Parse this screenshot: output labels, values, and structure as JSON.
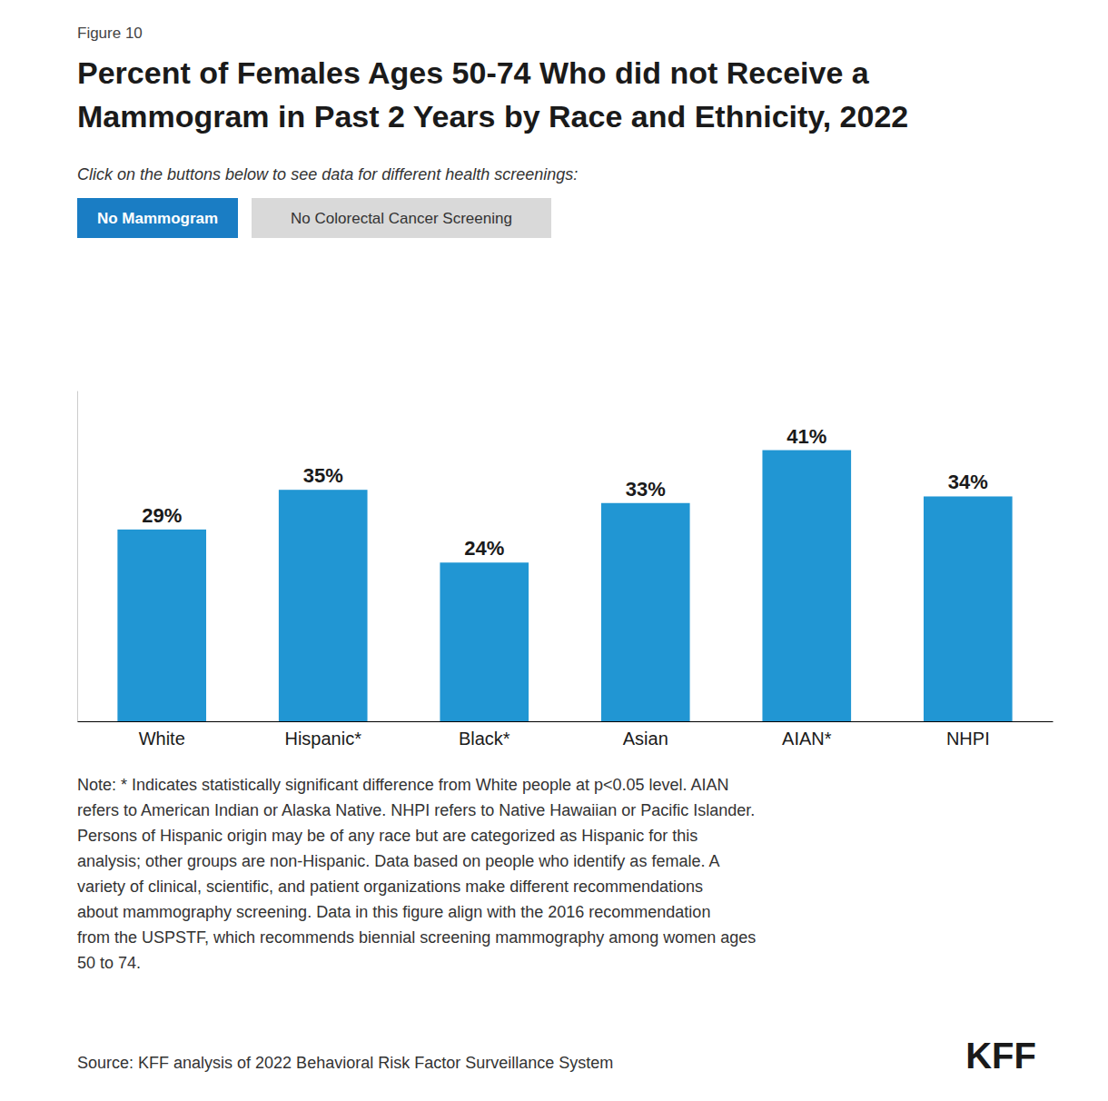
{
  "chart_data": {
    "type": "bar",
    "title": [
      "Percent of Females Ages 50-74 Who did not Receive a",
      "Mammogram in Past 2 Years by Race and Ethnicity, 2022"
    ],
    "subtitle": "Click on the buttons below to see data for different health screenings:",
    "annotations": [
      "Figure 10",
      "No Mammogram",
      "No Colorectal Cancer Screening",
      "Note: * Indicates statistically significant difference from White people at p<0.05 level. AIAN\nrefers to American Indian or Alaska Native. NHPI refers to Native Hawaiian or Pacific Islander.\nPersons of Hispanic origin may be of any race but are categorized as Hispanic for this\nanalysis; other groups are non-Hispanic. Data based on people who identify as female. A\nvariety of clinical, scientific, and patient organizations make different recommendations\nabout mammography screening. Data in this figure align with the 2016 recommendation\nfrom the USPSTF, which recommends biennial screening mammography among women ages\n50 to 74.",
      "Source: KFF analysis of 2022 Behavioral Risk Factor Surveillance System",
      "KFF"
    ],
    "categories": [
      "White",
      "Hispanic*",
      "Black*",
      "Asian",
      "AIAN*",
      "NHPI"
    ],
    "values": [
      29,
      35,
      24,
      33,
      41,
      34
    ],
    "value_labels": [
      "29%",
      "35%",
      "24%",
      "33%",
      "41%",
      "34%"
    ],
    "color": "#2196d3",
    "ylim": [
      0,
      50
    ],
    "grid": false,
    "data_labels": true,
    "tick_labels": "x"
  }
}
